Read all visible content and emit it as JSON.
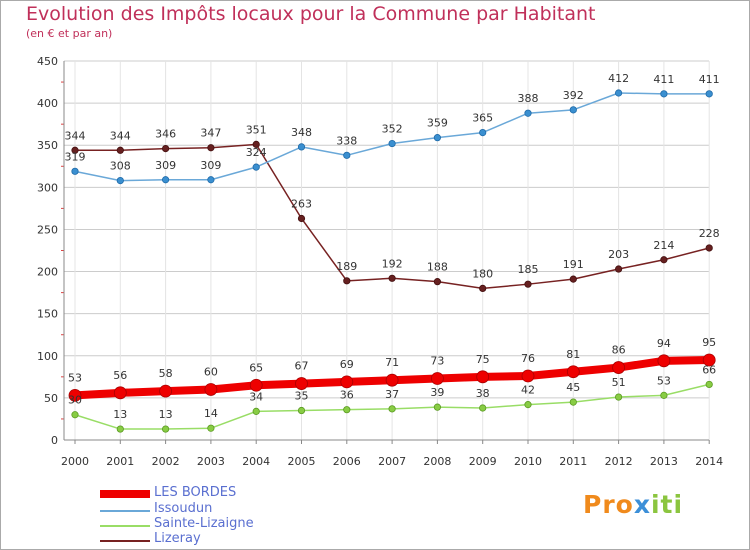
{
  "title": "Evolution des Impôts locaux pour la Commune par Habitant",
  "subtitle": "(en € et par an)",
  "logo": {
    "part1": "Pro",
    "part2": "x",
    "part3": "iti"
  },
  "colors": {
    "les_bordes": "#ee0000",
    "issoudun": "#6aa8d8",
    "sainte_lizaigne": "#99dd66",
    "lizeray": "#772222",
    "axis_text": "#333333",
    "grid": "#cccccc"
  },
  "chart_data": {
    "type": "line",
    "title": "Evolution des Impôts locaux pour la Commune par Habitant",
    "subtitle": "(en € et par an)",
    "xlabel": "",
    "ylabel": "",
    "ylim": [
      0,
      450
    ],
    "yticks": [
      0,
      50,
      100,
      150,
      200,
      250,
      300,
      350,
      400,
      450
    ],
    "grid": true,
    "legend_position": "bottom-left",
    "x": [
      "2000",
      "2001",
      "2002",
      "2003",
      "2004",
      "2005",
      "2006",
      "2007",
      "2008",
      "2009",
      "2010",
      "2011",
      "2012",
      "2013",
      "2014"
    ],
    "series": [
      {
        "name": "LES BORDES",
        "key": "les_bordes",
        "values": [
          53,
          56,
          58,
          60,
          65,
          67,
          69,
          71,
          73,
          75,
          76,
          81,
          86,
          94,
          95
        ]
      },
      {
        "name": "Issoudun",
        "key": "issoudun",
        "values": [
          319,
          308,
          309,
          309,
          324,
          348,
          338,
          352,
          359,
          365,
          388,
          392,
          412,
          411,
          411
        ]
      },
      {
        "name": "Sainte-Lizaigne",
        "key": "sainte_lizaigne",
        "values": [
          30,
          13,
          13,
          14,
          34,
          35,
          36,
          37,
          39,
          38,
          42,
          45,
          51,
          53,
          66
        ]
      },
      {
        "name": "Lizeray",
        "key": "lizeray",
        "values": [
          344,
          344,
          346,
          347,
          351,
          263,
          189,
          192,
          188,
          180,
          185,
          191,
          203,
          214,
          228
        ]
      }
    ]
  }
}
